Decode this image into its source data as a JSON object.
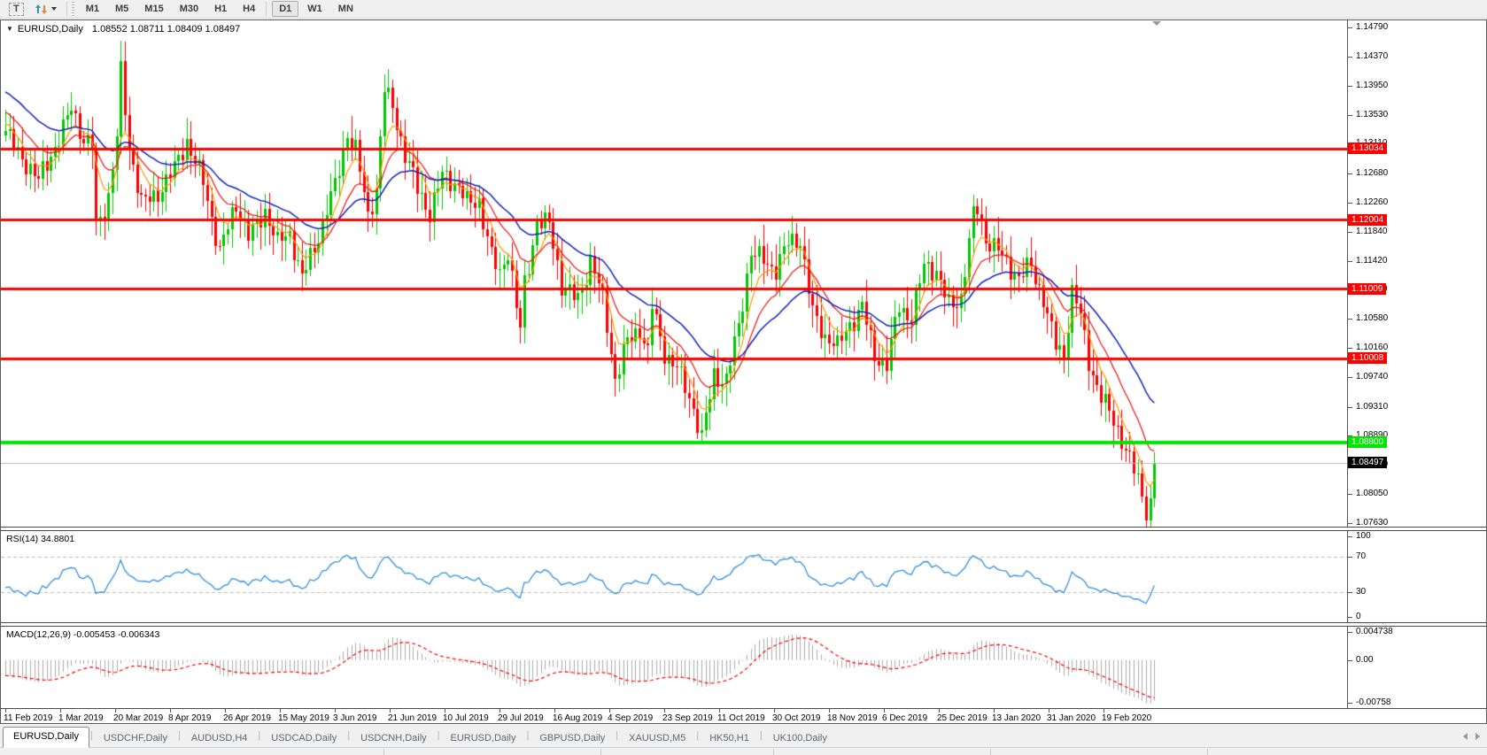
{
  "toolbar": {
    "text_tool_label": "T",
    "timeframes": [
      {
        "label": "M1",
        "active": false
      },
      {
        "label": "M5",
        "active": false
      },
      {
        "label": "M15",
        "active": false
      },
      {
        "label": "M30",
        "active": false
      },
      {
        "label": "H1",
        "active": false
      },
      {
        "label": "H4",
        "active": false
      },
      {
        "label": "D1",
        "active": true
      },
      {
        "label": "W1",
        "active": false
      },
      {
        "label": "MN",
        "active": false
      }
    ]
  },
  "chart_header": {
    "collapse_icon": "▼",
    "symbol": "EURUSD,Daily",
    "ohlc_text": "1.08552 1.08711 1.08409 1.08497"
  },
  "chart_data": {
    "type": "candlestick",
    "title": "EURUSD,Daily",
    "ohlc_display": {
      "open": "1.08552",
      "high": "1.08711",
      "low": "1.08409",
      "close": "1.08497"
    },
    "y_range": [
      1.07579,
      1.148923
    ],
    "y_axis_ticks": [
      1.1479,
      1.1437,
      1.1395,
      1.1353,
      1.1311,
      1.1268,
      1.1226,
      1.1184,
      1.1142,
      1.11,
      1.1058,
      1.1016,
      1.0974,
      1.0931,
      1.0889,
      1.0847,
      1.0805,
      1.0763
    ],
    "x_axis_labels": [
      "11 Feb 2019",
      "1 Mar 2019",
      "20 Mar 2019",
      "8 Apr 2019",
      "26 Apr 2019",
      "15 May 2019",
      "3 Jun 2019",
      "21 Jun 2019",
      "10 Jul 2019",
      "29 Jul 2019",
      "16 Aug 2019",
      "4 Sep 2019",
      "23 Sep 2019",
      "11 Oct 2019",
      "30 Oct 2019",
      "18 Nov 2019",
      "6 Dec 2019",
      "25 Dec 2019",
      "13 Jan 2020",
      "31 Jan 2020",
      "19 Feb 2020"
    ],
    "levels": [
      {
        "price": 1.13034,
        "label": "1.13034",
        "color": "#FF0000",
        "thickness": 3
      },
      {
        "price": 1.12004,
        "label": "1.12004",
        "color": "#FF0000",
        "thickness": 3
      },
      {
        "price": 1.11009,
        "label": "1.11009",
        "color": "#FF0000",
        "thickness": 3
      },
      {
        "price": 1.10008,
        "label": "1.10008",
        "color": "#FF0000",
        "thickness": 3
      },
      {
        "price": 1.088,
        "label": "1.08800",
        "color": "#00E600",
        "thickness": 4
      }
    ],
    "current_price": {
      "price": 1.08497,
      "label": "1.08497",
      "line_color": "#b9b9b9",
      "tag_color": "#000000"
    },
    "colors": {
      "up": "#00C800",
      "down": "#FE0000"
    },
    "layout": {
      "first_x": 5,
      "candle_spacing": 4.65,
      "label_spacing": 62,
      "body_width": 3
    },
    "price_path": {
      "noise": 0.0011,
      "wick_base": 0.0008,
      "wick_var": 0.0024,
      "anchors": [
        [
          -60,
          1.153
        ],
        [
          -45,
          1.146
        ],
        [
          -30,
          1.147
        ],
        [
          -15,
          1.139
        ],
        [
          0,
          1.133
        ],
        [
          4,
          1.1295
        ],
        [
          8,
          1.1252
        ],
        [
          13,
          1.1322
        ],
        [
          16,
          1.1368
        ],
        [
          19,
          1.131
        ],
        [
          21,
          1.1302
        ],
        [
          22,
          1.1188
        ],
        [
          25,
          1.124
        ],
        [
          27,
          1.1325
        ],
        [
          28,
          1.1415
        ],
        [
          30,
          1.1302
        ],
        [
          33,
          1.1222
        ],
        [
          37,
          1.1246
        ],
        [
          41,
          1.1272
        ],
        [
          44,
          1.131
        ],
        [
          48,
          1.1262
        ],
        [
          52,
          1.1152
        ],
        [
          54,
          1.1185
        ],
        [
          56,
          1.1222
        ],
        [
          59,
          1.1182
        ],
        [
          63,
          1.1212
        ],
        [
          66,
          1.1162
        ],
        [
          69,
          1.1185
        ],
        [
          72,
          1.1122
        ],
        [
          76,
          1.1172
        ],
        [
          80,
          1.1252
        ],
        [
          83,
          1.1332
        ],
        [
          85,
          1.1302
        ],
        [
          88,
          1.1202
        ],
        [
          90,
          1.1242
        ],
        [
          92,
          1.1392
        ],
        [
          94,
          1.1372
        ],
        [
          97,
          1.1292
        ],
        [
          100,
          1.1242
        ],
        [
          103,
          1.1212
        ],
        [
          106,
          1.1272
        ],
        [
          109,
          1.1252
        ],
        [
          112,
          1.1222
        ],
        [
          115,
          1.1232
        ],
        [
          118,
          1.1152
        ],
        [
          120,
          1.1122
        ],
        [
          122,
          1.1152
        ],
        [
          124,
          1.1072
        ],
        [
          125,
          1.1042
        ],
        [
          126,
          1.1112
        ],
        [
          129,
          1.1202
        ],
        [
          132,
          1.1192
        ],
        [
          135,
          1.1102
        ],
        [
          139,
          1.1092
        ],
        [
          142,
          1.1142
        ],
        [
          145,
          1.1082
        ],
        [
          148,
          1.0972
        ],
        [
          151,
          1.1032
        ],
        [
          154,
          1.1042
        ],
        [
          156,
          1.1002
        ],
        [
          157,
          1.1072
        ],
        [
          160,
          1.1012
        ],
        [
          163,
          1.0992
        ],
        [
          166,
          1.0942
        ],
        [
          169,
          1.0882
        ],
        [
          172,
          1.0982
        ],
        [
          175,
          1.0972
        ],
        [
          178,
          1.1042
        ],
        [
          181,
          1.1152
        ],
        [
          184,
          1.1148
        ],
        [
          187,
          1.1132
        ],
        [
          190,
          1.1162
        ],
        [
          193,
          1.1172
        ],
        [
          196,
          1.1072
        ],
        [
          199,
          1.1032
        ],
        [
          202,
          1.1012
        ],
        [
          205,
          1.1052
        ],
        [
          208,
          1.1082
        ],
        [
          211,
          1.1002
        ],
        [
          214,
          1.0986
        ],
        [
          217,
          1.1082
        ],
        [
          220,
          1.1062
        ],
        [
          223,
          1.1132
        ],
        [
          226,
          1.1122
        ],
        [
          229,
          1.1082
        ],
        [
          232,
          1.1092
        ],
        [
          235,
          1.1202
        ],
        [
          236,
          1.1212
        ],
        [
          238,
          1.1172
        ],
        [
          241,
          1.1162
        ],
        [
          243,
          1.1142
        ],
        [
          246,
          1.1112
        ],
        [
          249,
          1.1132
        ],
        [
          252,
          1.1092
        ],
        [
          255,
          1.1022
        ],
        [
          257,
          1.1002
        ],
        [
          259,
          1.1092
        ],
        [
          261,
          1.1062
        ],
        [
          263,
          1.1002
        ],
        [
          266,
          1.0948
        ],
        [
          269,
          1.0906
        ],
        [
          272,
          1.0866
        ],
        [
          275,
          1.0832
        ],
        [
          277,
          1.0786
        ],
        [
          278,
          1.0792
        ],
        [
          279,
          1.08497
        ]
      ]
    },
    "moving_averages": [
      {
        "period": 6,
        "color": "#FF9900",
        "width": 1.2
      },
      {
        "period": 14,
        "color": "#EE1111",
        "width": 1.2
      },
      {
        "period": 30,
        "color": "#1122BB",
        "width": 1.5
      }
    ],
    "indicators": {
      "rsi": {
        "label": "RSI(14) 34.8801",
        "period": 14,
        "current_value": 34.8801,
        "levels": [
          70,
          30
        ],
        "axis_labels": [
          "100",
          "70",
          "30",
          "0"
        ],
        "axis_values": [
          100,
          70,
          30,
          0
        ],
        "range": [
          0,
          100
        ],
        "color": "#3390E0",
        "level_color": "#bbbbbb"
      },
      "macd": {
        "label": "MACD(12,26,9) -0.005453 -0.006343",
        "fast": 12,
        "slow": 26,
        "signal": 9,
        "current_values": [
          -0.005453,
          -0.006343
        ],
        "axis_labels": [
          "0.004738",
          "0.00",
          "-0.00758"
        ],
        "axis_values": [
          0.004738,
          0,
          -0.00758
        ],
        "axis_range": [
          0.004738,
          -0.00758
        ],
        "histogram_color": "#ABABAB",
        "signal_color": "#FF0000"
      }
    }
  },
  "tabbar": {
    "tabs": [
      {
        "label": "EURUSD,Daily",
        "active": true
      },
      {
        "label": "USDCHF,Daily",
        "active": false
      },
      {
        "label": "AUDUSD,H4",
        "active": false
      },
      {
        "label": "USDCAD,Daily",
        "active": false
      },
      {
        "label": "USDCNH,Daily",
        "active": false
      },
      {
        "label": "EURUSD,Daily",
        "active": false
      },
      {
        "label": "GBPUSD,Daily",
        "active": false
      },
      {
        "label": "XAUUSD,M5",
        "active": false
      },
      {
        "label": "HK50,H1",
        "active": false
      },
      {
        "label": "UK100,Daily",
        "active": false
      }
    ]
  }
}
